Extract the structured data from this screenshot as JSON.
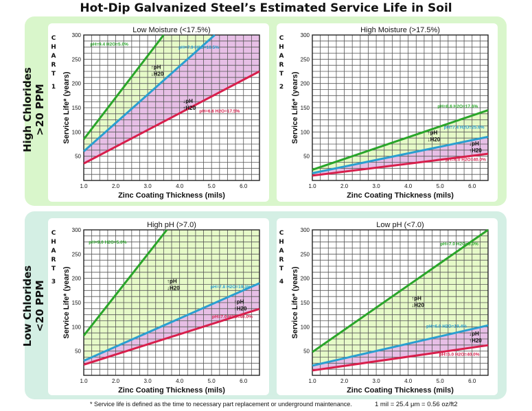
{
  "page": {
    "title": "Hot-Dip Galvanized Steel’s Estimated Service Life in Soil",
    "row_labels": [
      {
        "line1": "High Chlorides",
        "line2": ">20 PPM"
      },
      {
        "line1": "Low Chlorides",
        "line2": "<20 PPM"
      }
    ],
    "chart_word": "CHART",
    "footnote": "* Service life is defined as the time to necessary part replacement or underground maintenance.",
    "conversion": "1 mil = 25.4 μm = 0.56 oz/ft2"
  },
  "colors": {
    "green_line": "#2aa52a",
    "blue_line": "#2a9fd0",
    "red_line": "#d81f4c",
    "green_fill": "#e6fac8",
    "pink_fill": "#e7bfe6",
    "grid": "#555555"
  },
  "chart_data": [
    {
      "type": "line",
      "chart_number": "1",
      "title": "Low Moisture (<17.5%)",
      "xlabel": "Zinc Coating Thickness (mils)",
      "ylabel": "Service Life* (years)",
      "xlim": [
        1.0,
        6.5
      ],
      "ylim": [
        0,
        300
      ],
      "xticks": [
        "1.0",
        "2.0",
        "3.0",
        "4.0",
        "5.0",
        "6.0"
      ],
      "yticks": [
        "50",
        "100",
        "150",
        "200",
        "250",
        "300"
      ],
      "series": [
        {
          "name": "pH=9.4 H2O=5.0%",
          "color": "green",
          "x": [
            1.0,
            3.5
          ],
          "y": [
            85,
            300
          ]
        },
        {
          "name": "pH=7.9 H2O=10.5%",
          "color": "blue",
          "x": [
            1.0,
            5.1
          ],
          "y": [
            60,
            300
          ]
        },
        {
          "name": "pH=6.6 H2O=17.5%",
          "color": "red",
          "x": [
            1.0,
            6.5
          ],
          "y": [
            35,
            225
          ]
        }
      ],
      "annotations": [
        {
          "text": "pH=9.4 H2O=5.0%",
          "color": "green",
          "x": 1.8,
          "y": 278
        },
        {
          "text": "pH=7.9 H2O=10.5%",
          "color": "blue",
          "x": 4.6,
          "y": 272
        },
        {
          "text": "pH=6.6 H2O=17.5%",
          "color": "red",
          "x": 5.25,
          "y": 140
        }
      ],
      "markers": [
        {
          "ph_arrow": "↑",
          "h2o_arrow": "↓",
          "x": 3.1,
          "y": 230
        },
        {
          "ph_arrow": "↓",
          "h2o_arrow": "↑",
          "x": 4.1,
          "y": 160
        }
      ]
    },
    {
      "type": "line",
      "chart_number": "2",
      "title": "High Moisture (>17.5%)",
      "xlabel": "Zinc Coating Thickness (mils)",
      "ylabel": "Service Life* (years)",
      "xlim": [
        1.0,
        6.5
      ],
      "ylim": [
        0,
        300
      ],
      "xticks": [
        "1.0",
        "2.0",
        "3.0",
        "4.0",
        "5.0",
        "6.0"
      ],
      "yticks": [
        "50",
        "100",
        "150",
        "200",
        "250",
        "300"
      ],
      "series": [
        {
          "name": "pH=8.6 H2O=17.6%",
          "color": "green",
          "x": [
            1.0,
            6.5
          ],
          "y": [
            22,
            145
          ]
        },
        {
          "name": "pH=7.4 H2O=25.6%",
          "color": "blue",
          "x": [
            1.0,
            6.5
          ],
          "y": [
            15,
            90
          ]
        },
        {
          "name": "pH=6.0 H2O=40.0%",
          "color": "red",
          "x": [
            1.0,
            6.5
          ],
          "y": [
            10,
            55
          ]
        }
      ],
      "annotations": [
        {
          "text": "pH=8.6 H2O=17.6%",
          "color": "green",
          "x": 5.55,
          "y": 150
        },
        {
          "text": "pH=7.4 H2O=25.6%",
          "color": "blue",
          "x": 5.75,
          "y": 107
        },
        {
          "text": "pH=6.0 H2O=40.0%",
          "color": "red",
          "x": 5.8,
          "y": 40
        }
      ],
      "markers": [
        {
          "ph_arrow": "↑",
          "h2o_arrow": "↓",
          "x": 4.6,
          "y": 95
        },
        {
          "ph_arrow": "↓",
          "h2o_arrow": "↑",
          "x": 5.9,
          "y": 72
        }
      ]
    },
    {
      "type": "line",
      "chart_number": "3",
      "title": "High pH (>7.0)",
      "xlabel": "Zinc Coating Thickness (mils)",
      "ylabel": "Service Life* (years)",
      "xlim": [
        1.0,
        6.5
      ],
      "ylim": [
        0,
        300
      ],
      "xticks": [
        "1.0",
        "2.0",
        "3.0",
        "4.0",
        "5.0",
        "6.0"
      ],
      "yticks": [
        "50",
        "100",
        "150",
        "200",
        "250",
        "300"
      ],
      "series": [
        {
          "name": "pH=9.0 H2O=5.0%",
          "color": "green",
          "x": [
            1.0,
            3.6
          ],
          "y": [
            82,
            300
          ]
        },
        {
          "name": "pH=7.8 H2O=19.3%",
          "color": "blue",
          "x": [
            1.0,
            6.5
          ],
          "y": [
            30,
            190
          ]
        },
        {
          "name": "pH=7.0 H2O=40.0%",
          "color": "red",
          "x": [
            1.0,
            6.5
          ],
          "y": [
            22,
            137
          ]
        }
      ],
      "annotations": [
        {
          "text": "pH=9.0 H2O=5.0%",
          "color": "green",
          "x": 1.75,
          "y": 272
        },
        {
          "text": "pH=7.8 H2O=19.3%",
          "color": "blue",
          "x": 5.6,
          "y": 180
        },
        {
          "text": "pH=7.0 H2O=40.0%",
          "color": "red",
          "x": 5.65,
          "y": 118
        }
      ],
      "markers": [
        {
          "ph_arrow": "↑",
          "h2o_arrow": "↓",
          "x": 3.6,
          "y": 190
        },
        {
          "ph_arrow": "↑",
          "h2o_arrow": "↑",
          "x": 5.7,
          "y": 148
        }
      ]
    },
    {
      "type": "line",
      "chart_number": "4",
      "title": "Low pH (<7.0)",
      "xlabel": "Zinc Coating Thickness (mils)",
      "ylabel": "Service Life* (years)",
      "xlim": [
        1.0,
        6.5
      ],
      "ylim": [
        0,
        300
      ],
      "xticks": [
        "1.0",
        "2.0",
        "3.0",
        "4.0",
        "5.0",
        "6.0"
      ],
      "yticks": [
        "50",
        "100",
        "150",
        "200",
        "250",
        "300"
      ],
      "series": [
        {
          "name": "pH=7.0 H2O=5.0%",
          "color": "green",
          "x": [
            1.0,
            6.5
          ],
          "y": [
            48,
            300
          ]
        },
        {
          "name": "pH=6.0 H2O=19.4%",
          "color": "blue",
          "x": [
            1.0,
            6.5
          ],
          "y": [
            20,
            103
          ]
        },
        {
          "name": "pH=5.0 H2O=40.0%",
          "color": "red",
          "x": [
            1.0,
            6.5
          ],
          "y": [
            10,
            62
          ]
        }
      ],
      "annotations": [
        {
          "text": "pH=7.0 H2O=5.0%",
          "color": "green",
          "x": 5.6,
          "y": 268
        },
        {
          "text": "pH=6.0 H2O=19.4%",
          "color": "blue",
          "x": 5.2,
          "y": 98
        },
        {
          "text": "pH=5.0 H2O=40.0%",
          "color": "red",
          "x": 5.6,
          "y": 40
        }
      ],
      "markers": [
        {
          "ph_arrow": "↑",
          "h2o_arrow": "↓",
          "x": 4.1,
          "y": 155
        },
        {
          "ph_arrow": "↓",
          "h2o_arrow": "↑",
          "x": 5.9,
          "y": 82
        }
      ]
    }
  ]
}
